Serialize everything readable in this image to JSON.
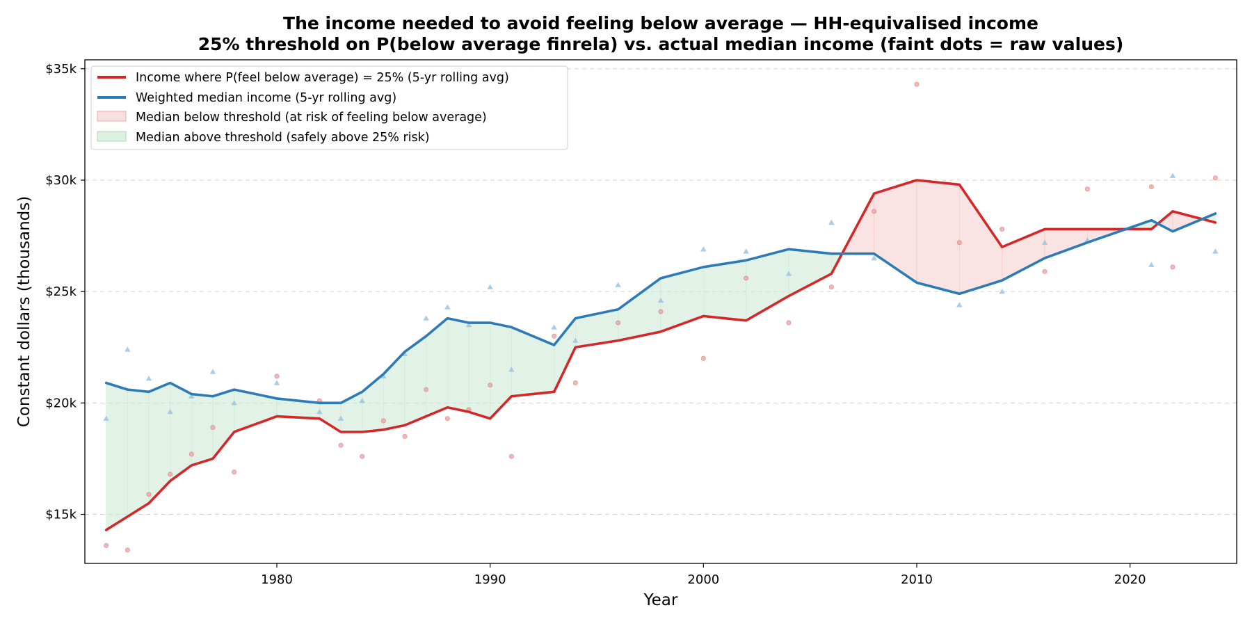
{
  "chart_data": {
    "type": "line",
    "title": "The income needed to avoid feeling below average  —  HH-equivalised income",
    "subtitle": "25% threshold on P(below average finrela) vs. actual median income  (faint dots = raw values)",
    "xlabel": "Year",
    "ylabel": "Constant dollars (thousands)",
    "xlim": [
      1971,
      2025
    ],
    "ylim": [
      12.8,
      35.4
    ],
    "x_ticks": [
      1980,
      1990,
      2000,
      2010,
      2020
    ],
    "y_ticks": [
      {
        "value": 15,
        "label": "$15k"
      },
      {
        "value": 20,
        "label": "$20k"
      },
      {
        "value": 25,
        "label": "$25k"
      },
      {
        "value": 30,
        "label": "$30k"
      },
      {
        "value": 35,
        "label": "$35k"
      }
    ],
    "grid": "horizontal dashed",
    "legend_position": "top-left",
    "x": [
      1972,
      1973,
      1974,
      1975,
      1976,
      1977,
      1978,
      1980,
      1982,
      1983,
      1984,
      1985,
      1986,
      1987,
      1988,
      1989,
      1990,
      1991,
      1993,
      1994,
      1996,
      1998,
      2000,
      2002,
      2004,
      2006,
      2008,
      2010,
      2012,
      2014,
      2016,
      2018,
      2021,
      2022,
      2024
    ],
    "series": [
      {
        "name": "Income where P(feel below average) = 25%  (5-yr rolling avg)",
        "color": "#d62728",
        "values": [
          14.3,
          14.9,
          15.5,
          16.5,
          17.2,
          17.5,
          18.7,
          19.4,
          19.3,
          18.7,
          18.7,
          18.8,
          19.0,
          19.4,
          19.8,
          19.6,
          19.3,
          20.3,
          20.5,
          22.5,
          22.8,
          23.2,
          23.9,
          23.7,
          24.8,
          25.8,
          29.4,
          30.0,
          29.8,
          27.0,
          27.8,
          27.8,
          27.8,
          28.6,
          28.1
        ]
      },
      {
        "name": "Weighted median income  (5-yr rolling avg)",
        "color": "#2c7bb6",
        "values": [
          20.9,
          20.6,
          20.5,
          20.9,
          20.4,
          20.3,
          20.6,
          20.2,
          20.0,
          20.0,
          20.5,
          21.3,
          22.3,
          23.0,
          23.8,
          23.6,
          23.6,
          23.4,
          22.6,
          23.8,
          24.2,
          25.6,
          26.1,
          26.4,
          26.9,
          26.7,
          26.7,
          25.4,
          24.9,
          25.5,
          26.5,
          27.2,
          28.2,
          27.7,
          28.5
        ]
      }
    ],
    "raw_threshold": {
      "x": [
        1972,
        1973,
        1974,
        1975,
        1976,
        1977,
        1978,
        1980,
        1982,
        1983,
        1984,
        1985,
        1986,
        1987,
        1988,
        1989,
        1990,
        1991,
        1993,
        1994,
        1996,
        1998,
        2000,
        2002,
        2004,
        2006,
        2008,
        2010,
        2012,
        2014,
        2016,
        2018,
        2021,
        2022,
        2024
      ],
      "values": [
        13.6,
        13.4,
        15.9,
        16.8,
        17.7,
        18.9,
        16.9,
        21.2,
        20.1,
        18.1,
        17.6,
        19.2,
        18.5,
        20.6,
        19.3,
        19.7,
        20.8,
        17.6,
        23.0,
        20.9,
        23.6,
        24.1,
        22.0,
        25.6,
        23.6,
        25.2,
        28.6,
        34.3,
        27.2,
        27.8,
        25.9,
        29.6,
        29.7,
        26.1,
        30.1
      ]
    },
    "raw_median": {
      "x": [
        1972,
        1973,
        1974,
        1975,
        1976,
        1977,
        1978,
        1980,
        1982,
        1983,
        1984,
        1985,
        1986,
        1987,
        1988,
        1989,
        1990,
        1991,
        1993,
        1994,
        1996,
        1998,
        2000,
        2002,
        2004,
        2006,
        2008,
        2012,
        2014,
        2016,
        2018,
        2021,
        2022,
        2024
      ],
      "values": [
        19.3,
        22.4,
        21.1,
        19.6,
        20.3,
        21.4,
        20.0,
        20.9,
        19.6,
        19.3,
        20.1,
        21.2,
        22.2,
        23.8,
        24.3,
        23.5,
        25.2,
        21.5,
        23.4,
        22.8,
        25.3,
        24.6,
        26.9,
        26.8,
        25.8,
        28.1,
        26.5,
        24.4,
        25.0,
        27.2,
        27.3,
        26.2,
        30.2,
        26.8
      ]
    },
    "legend": {
      "threshold_line": "Income where P(feel below average) = 25%  (5-yr rolling avg)",
      "median_line": "Weighted median income  (5-yr rolling avg)",
      "below_fill": "Median below threshold (at risk of feeling below average)",
      "above_fill": "Median above threshold (safely above 25% risk)"
    },
    "colors": {
      "threshold": "#d62728",
      "median": "#2c7bb6",
      "below_fill": "#f4c7c7",
      "above_fill": "#cfe9d6"
    }
  }
}
